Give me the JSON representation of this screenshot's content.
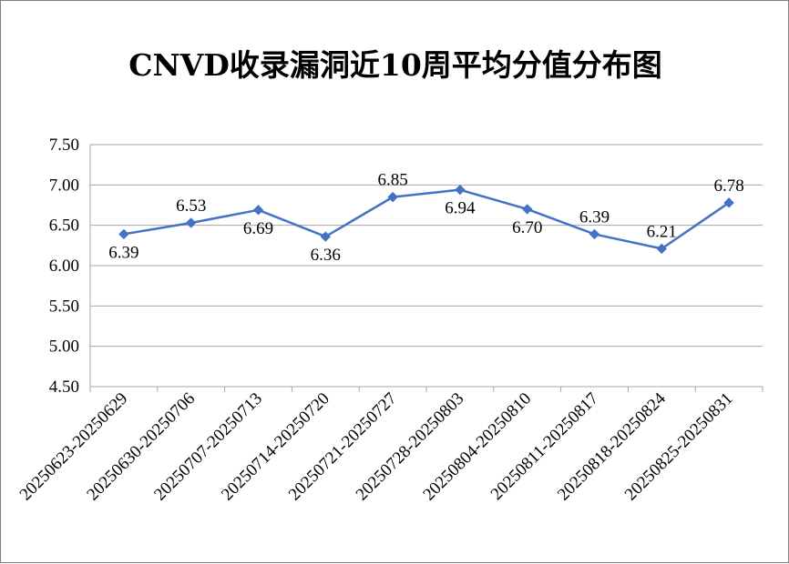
{
  "chart_data": {
    "type": "line",
    "title": "CNVD收录漏洞近10周平均分值分布图",
    "categories": [
      "20250623-20250629",
      "20250630-20250706",
      "20250707-20250713",
      "20250714-20250720",
      "20250721-20250727",
      "20250728-20250803",
      "20250804-20250810",
      "20250811-20250817",
      "20250818-20250824",
      "20250825-20250831"
    ],
    "series": [
      {
        "values": [
          6.39,
          6.53,
          6.69,
          6.36,
          6.85,
          6.94,
          6.7,
          6.39,
          6.21,
          6.78
        ],
        "labels": [
          "6.39",
          "6.53",
          "6.69",
          "6.36",
          "6.85",
          "6.94",
          "6.70",
          "6.39",
          "6.21",
          "6.78"
        ],
        "color": "#4472c4"
      }
    ],
    "y_ticks": [
      "7.50",
      "7.00",
      "6.50",
      "6.00",
      "5.50",
      "5.00",
      "4.50"
    ],
    "ylim": [
      4.5,
      7.5
    ],
    "grid": true,
    "legend": "none",
    "line_color": "#4472c4",
    "grid_color": "#a6a6a6"
  }
}
